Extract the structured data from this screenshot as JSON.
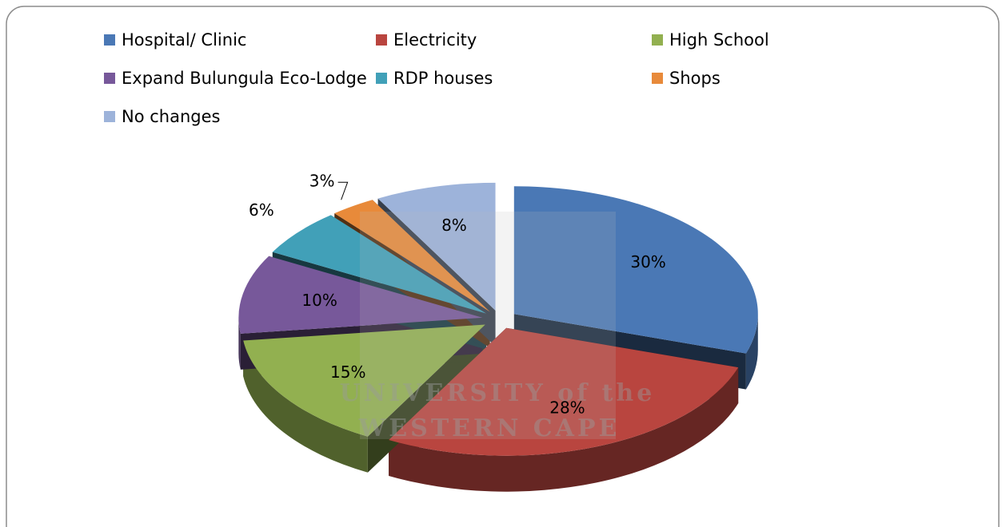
{
  "chart_data": {
    "type": "pie",
    "categories": [
      "Hospital/ Clinic",
      "Electricity",
      "High School",
      "Expand Bulungula Eco-Lodge",
      "RDP houses",
      "Shops",
      "No changes"
    ],
    "values": [
      30,
      28,
      15,
      10,
      6,
      3,
      8
    ],
    "value_labels": [
      "30%",
      "28%",
      "15%",
      "10%",
      "6%",
      "3%",
      "8%"
    ],
    "colors": [
      "#4a78b5",
      "#b9453f",
      "#92b050",
      "#77589a",
      "#41a0b8",
      "#e88a3a",
      "#9db3da"
    ],
    "legend": "top",
    "watermark": [
      "UNIVERSITY of the",
      "WESTERN CAPE"
    ]
  }
}
